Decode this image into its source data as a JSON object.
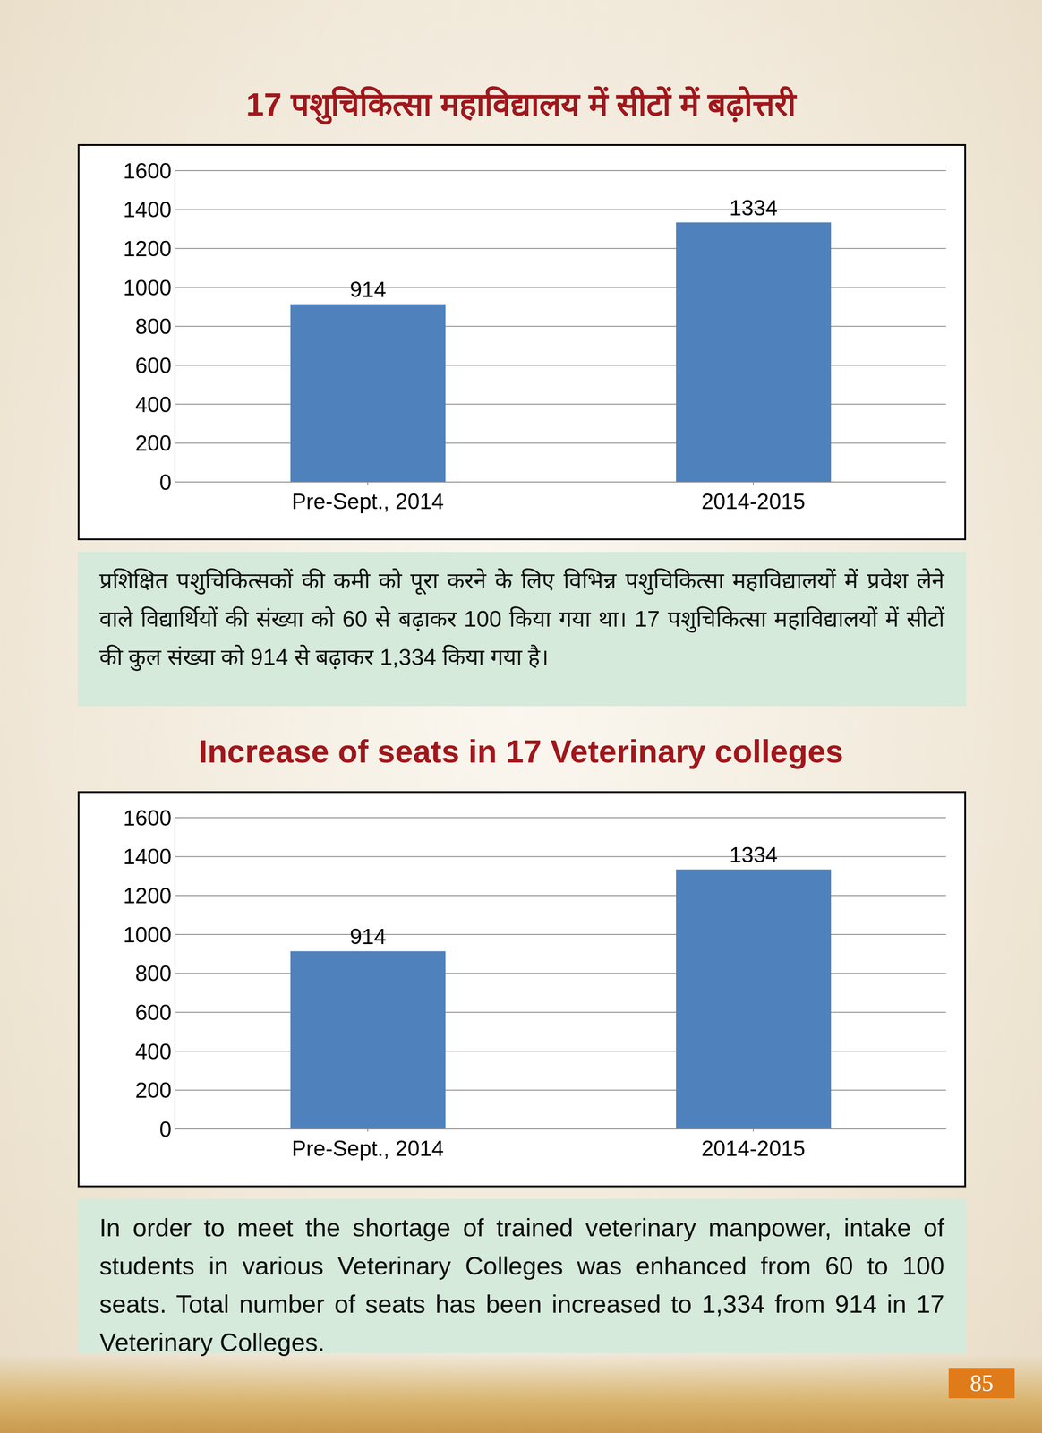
{
  "chart_data": [
    {
      "type": "bar",
      "title": "17 पशुचिकित्सा महाविद्यालय में सीटों में बढ़ोत्तरी",
      "categories": [
        "Pre-Sept., 2014",
        "2014-2015"
      ],
      "values": [
        914,
        1334
      ],
      "color": "#4f81bd",
      "ylim": [
        0,
        1600
      ],
      "yticks": [
        0,
        200,
        400,
        600,
        800,
        1000,
        1200,
        1400,
        1600
      ],
      "grid": true,
      "data_labels": true
    },
    {
      "type": "bar",
      "title": "Increase of seats in 17 Veterinary colleges",
      "categories": [
        "Pre-Sept., 2014",
        "2014-2015"
      ],
      "values": [
        914,
        1334
      ],
      "color": "#4f81bd",
      "ylim": [
        0,
        1600
      ],
      "yticks": [
        0,
        200,
        400,
        600,
        800,
        1000,
        1200,
        1400,
        1600
      ],
      "grid": true,
      "data_labels": true
    }
  ],
  "paragraphs": [
    "प्रशिक्षित पशुचिकित्सकों की कमी को पूरा करने के लिए विभिन्न पशुचिकित्सा महाविद्यालयों में प्रवेश लेने वाले विद्यार्थियों की संख्या को 60 से बढ़ाकर 100 किया गया था। 17 पशुचिकित्सा महाविद्यालयों में सीटों की कुल संख्या को 914 से बढ़ाकर 1,334 किया गया है।",
    "In order to meet the shortage of trained veterinary manpower, intake of students in various Veterinary Colleges was enhanced from 60 to 100 seats. Total number of seats has been increased to 1,334 from 914 in 17 Veterinary Colleges."
  ],
  "page_number": "85"
}
